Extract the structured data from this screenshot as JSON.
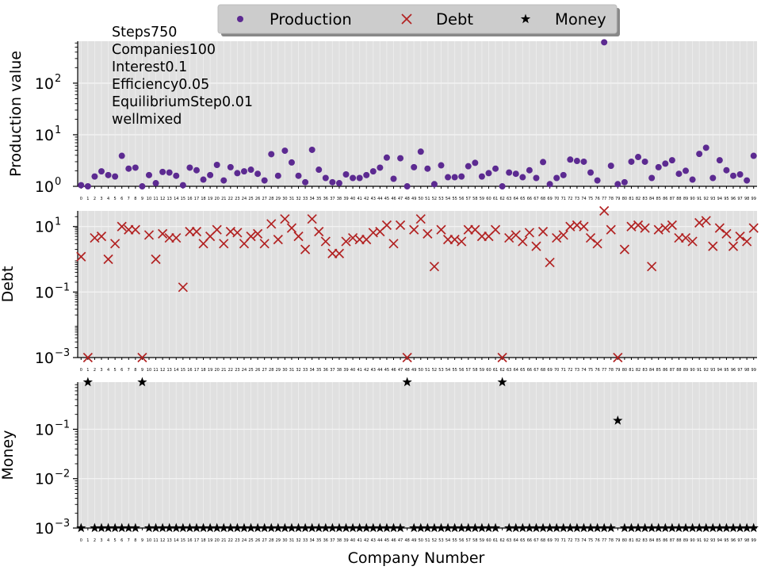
{
  "chart_data": {
    "type": "scatter",
    "xlabel": "Company Number",
    "x": [
      0,
      1,
      2,
      3,
      4,
      5,
      6,
      7,
      8,
      9,
      10,
      11,
      12,
      13,
      14,
      15,
      16,
      17,
      18,
      19,
      20,
      21,
      22,
      23,
      24,
      25,
      26,
      27,
      28,
      29,
      30,
      31,
      32,
      33,
      34,
      35,
      36,
      37,
      38,
      39,
      40,
      41,
      42,
      43,
      44,
      45,
      46,
      47,
      48,
      49,
      50,
      51,
      52,
      53,
      54,
      55,
      56,
      57,
      58,
      59,
      60,
      61,
      62,
      63,
      64,
      65,
      66,
      67,
      68,
      69,
      70,
      71,
      72,
      73,
      74,
      75,
      76,
      77,
      78,
      79,
      80,
      81,
      82,
      83,
      84,
      85,
      86,
      87,
      88,
      89,
      90,
      91,
      92,
      93,
      94,
      95,
      96,
      97,
      98,
      99
    ],
    "xticks": [
      "0",
      "1",
      "2",
      "3",
      "4",
      "5",
      "6",
      "7",
      "8",
      "9",
      "10",
      "11",
      "12",
      "13",
      "14",
      "15",
      "16",
      "17",
      "18",
      "19",
      "20",
      "21",
      "22",
      "23",
      "24",
      "25",
      "26",
      "27",
      "28",
      "29",
      "30",
      "31",
      "32",
      "33",
      "34",
      "35",
      "36",
      "37",
      "38",
      "39",
      "40",
      "41",
      "42",
      "43",
      "44",
      "45",
      "46",
      "47",
      "48",
      "49",
      "50",
      "51",
      "52",
      "53",
      "54",
      "55",
      "56",
      "57",
      "58",
      "59",
      "60",
      "61",
      "62",
      "63",
      "64",
      "65",
      "66",
      "67",
      "68",
      "69",
      "70",
      "71",
      "72",
      "73",
      "74",
      "75",
      "76",
      "77",
      "78",
      "79",
      "80",
      "81",
      "82",
      "83",
      "84",
      "85",
      "86",
      "87",
      "88",
      "89",
      "90",
      "91",
      "92",
      "93",
      "94",
      "95",
      "96",
      "97",
      "98",
      "99"
    ],
    "legend": {
      "placement": "top-center",
      "entries": [
        {
          "name": "Production",
          "marker": "circle",
          "color": "#5c2a91"
        },
        {
          "name": "Debt",
          "marker": "x",
          "color": "#b22222"
        },
        {
          "name": "Money",
          "marker": "star",
          "color": "#000000"
        }
      ]
    },
    "annotation_lines": [
      "Steps750",
      "Companies100",
      "Interest0.1",
      "Efficiency0.05",
      "EquilibriumStep0.01",
      "wellmixed"
    ],
    "grid": true,
    "panels": [
      {
        "ylabel": "Production value",
        "scale": "log",
        "ylim": [
          1,
          650
        ],
        "yticks": [
          {
            "value": 1,
            "base": "10",
            "exp": "0"
          },
          {
            "value": 10,
            "base": "10",
            "exp": "1"
          },
          {
            "value": 100,
            "base": "10",
            "exp": "2"
          }
        ],
        "series": {
          "name": "Production",
          "marker": "circle",
          "color": "#5c2a91",
          "values": [
            1.05,
            1.0,
            1.55,
            1.95,
            1.65,
            1.55,
            3.9,
            2.2,
            2.3,
            0.98,
            1.65,
            1.15,
            1.9,
            1.85,
            1.6,
            1.05,
            2.3,
            2.05,
            1.35,
            1.65,
            2.6,
            1.3,
            2.35,
            1.8,
            1.95,
            2.1,
            1.75,
            1.3,
            4.2,
            1.6,
            4.9,
            2.9,
            1.6,
            1.2,
            5.1,
            2.1,
            1.45,
            1.2,
            1.15,
            1.7,
            1.45,
            1.45,
            1.65,
            1.95,
            2.3,
            3.6,
            1.4,
            3.5,
            0.97,
            2.35,
            4.7,
            2.2,
            1.1,
            2.55,
            1.5,
            1.5,
            1.55,
            2.45,
            2.85,
            1.55,
            1.8,
            2.2,
            0.98,
            1.85,
            1.75,
            1.5,
            2.05,
            1.45,
            2.95,
            1.1,
            1.45,
            1.65,
            3.3,
            3.1,
            3.0,
            1.85,
            1.3,
            620,
            2.5,
            1.1,
            1.2,
            3.0,
            3.7,
            3.0,
            1.45,
            2.35,
            2.75,
            3.2,
            1.75,
            2.0,
            1.35,
            4.25,
            5.6,
            1.45,
            3.2,
            2.05,
            1.6,
            1.7,
            1.3,
            3.9
          ]
        }
      },
      {
        "ylabel": "Debt",
        "scale": "log",
        "ylim": [
          0.001,
          30
        ],
        "yticks": [
          {
            "value": 0.001,
            "base": "10",
            "exp": "−3"
          },
          {
            "value": 0.1,
            "base": "10",
            "exp": "−1"
          },
          {
            "value": 10,
            "base": "10",
            "exp": "1"
          }
        ],
        "series": {
          "name": "Debt",
          "marker": "x",
          "color": "#b22222",
          "values": [
            1.2,
            0.001,
            4.5,
            5.0,
            1.0,
            3.0,
            10,
            8,
            8,
            0.001,
            5.5,
            1.0,
            6,
            4.5,
            4.5,
            0.14,
            7,
            7,
            3,
            5,
            8,
            3,
            7,
            6.5,
            3,
            5,
            6,
            3,
            12,
            4,
            17,
            9,
            5,
            2,
            17,
            7,
            3.5,
            1.5,
            1.5,
            3.5,
            4.5,
            4,
            4,
            6.5,
            7,
            11,
            3,
            11,
            0.001,
            8,
            17,
            6,
            0.6,
            8,
            4,
            4,
            3.5,
            8,
            8,
            5,
            5,
            8,
            0.001,
            4.5,
            5.5,
            3.5,
            6.5,
            2.5,
            7,
            0.8,
            4.5,
            5.5,
            10,
            11,
            10,
            4.5,
            3,
            30,
            8,
            0.001,
            2,
            10,
            11,
            9,
            0.6,
            8,
            9,
            11,
            4.5,
            4.5,
            3.5,
            13,
            15,
            2.5,
            9,
            6,
            2.5,
            5,
            3.5,
            9
          ]
        }
      },
      {
        "ylabel": "Money",
        "scale": "log",
        "ylim": [
          0.001,
          0.9
        ],
        "yticks": [
          {
            "value": 0.001,
            "base": "10",
            "exp": "−3"
          },
          {
            "value": 0.01,
            "base": "10",
            "exp": "−2"
          },
          {
            "value": 0.1,
            "base": "10",
            "exp": "−1"
          }
        ],
        "series": {
          "name": "Money",
          "marker": "star",
          "color": "#000000",
          "values": [
            0.001,
            0.9,
            0.001,
            0.001,
            0.001,
            0.001,
            0.001,
            0.001,
            0.001,
            0.9,
            0.001,
            0.001,
            0.001,
            0.001,
            0.001,
            0.001,
            0.001,
            0.001,
            0.001,
            0.001,
            0.001,
            0.001,
            0.001,
            0.001,
            0.001,
            0.001,
            0.001,
            0.001,
            0.001,
            0.001,
            0.001,
            0.001,
            0.001,
            0.001,
            0.001,
            0.001,
            0.001,
            0.001,
            0.001,
            0.001,
            0.001,
            0.001,
            0.001,
            0.001,
            0.001,
            0.001,
            0.001,
            0.001,
            0.9,
            0.001,
            0.001,
            0.001,
            0.001,
            0.001,
            0.001,
            0.001,
            0.001,
            0.001,
            0.001,
            0.001,
            0.001,
            0.001,
            0.9,
            0.001,
            0.001,
            0.001,
            0.001,
            0.001,
            0.001,
            0.001,
            0.001,
            0.001,
            0.001,
            0.001,
            0.001,
            0.001,
            0.001,
            0.001,
            0.001,
            0.15,
            0.001,
            0.001,
            0.001,
            0.001,
            0.001,
            0.001,
            0.001,
            0.001,
            0.001,
            0.001,
            0.001,
            0.001,
            0.001,
            0.001,
            0.001,
            0.001,
            0.001,
            0.001,
            0.001,
            0.001
          ]
        }
      }
    ]
  }
}
